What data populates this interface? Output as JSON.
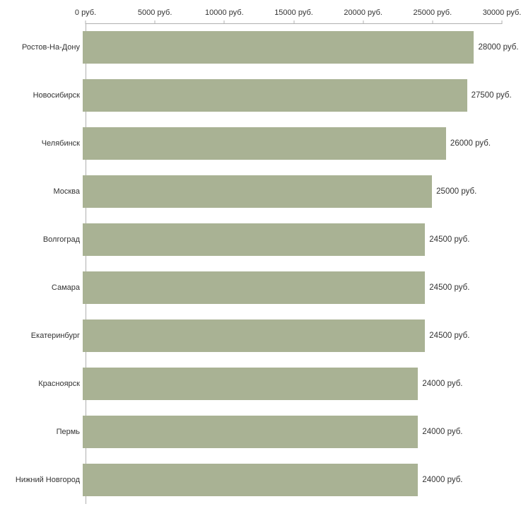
{
  "colors": {
    "bar": "#a9b294",
    "axis": "#b0b0b0",
    "text": "#333333",
    "background": "#ffffff"
  },
  "chart_data": {
    "type": "bar",
    "orientation": "horizontal",
    "title": "",
    "xlabel": "",
    "ylabel": "",
    "xlim": [
      0,
      30000
    ],
    "grid": false,
    "legend": "none",
    "axis_ticks": {
      "values": [
        0,
        5000,
        10000,
        15000,
        20000,
        25000,
        30000
      ],
      "labels": [
        "0 руб.",
        "5000 руб.",
        "10000 руб.",
        "15000 руб.",
        "20000 руб.",
        "25000 руб.",
        "30000 руб."
      ]
    },
    "categories": [
      "Ростов-На-Дону",
      "Новосибирск",
      "Челябинск",
      "Москва",
      "Волгоград",
      "Самара",
      "Екатеринбург",
      "Красноярск",
      "Пермь",
      "Нижний Новгород"
    ],
    "values": [
      28000,
      27500,
      26000,
      25000,
      24500,
      24500,
      24500,
      24000,
      24000,
      24000
    ],
    "value_labels": [
      "28000 руб.",
      "27500 руб.",
      "26000 руб.",
      "25000 руб.",
      "24500 руб.",
      "24500 руб.",
      "24500 руб.",
      "24000 руб.",
      "24000 руб.",
      "24000 руб."
    ]
  }
}
